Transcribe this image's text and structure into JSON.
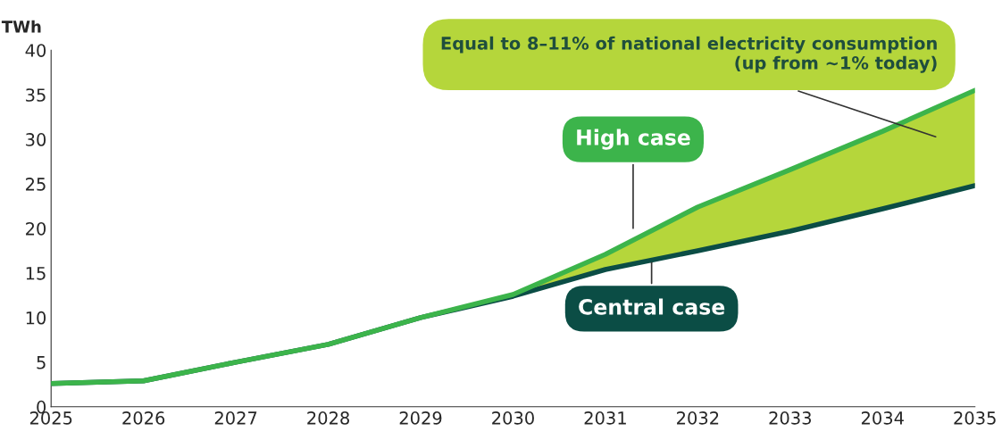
{
  "chart_data": {
    "type": "line",
    "ylabel": "TWh",
    "x": [
      2025,
      2026,
      2027,
      2028,
      2029,
      2030,
      2031,
      2032,
      2033,
      2034,
      2035
    ],
    "xlim": [
      2025,
      2035
    ],
    "xticks": [
      2025,
      2026,
      2027,
      2028,
      2029,
      2030,
      2031,
      2032,
      2033,
      2034,
      2035
    ],
    "ylim": [
      0,
      40
    ],
    "yticks": [
      0,
      5,
      10,
      15,
      20,
      25,
      30,
      35,
      40
    ],
    "grid": false,
    "legend": false,
    "marker": "none",
    "line_style": "solid",
    "series": [
      {
        "name": "Central case",
        "color": "#0b4d45",
        "values": [
          2.6,
          2.9,
          5.0,
          7.0,
          10.0,
          12.4,
          15.4,
          17.5,
          19.7,
          22.2,
          24.8
        ]
      },
      {
        "name": "High case",
        "color": "#3cb44b",
        "values": [
          2.6,
          2.9,
          5.0,
          7.0,
          10.0,
          12.6,
          17.1,
          22.4,
          26.6,
          30.9,
          35.5
        ],
        "lower": [
          null,
          null,
          null,
          null,
          null,
          12.4,
          15.4,
          17.5,
          19.7,
          22.2,
          24.8
        ],
        "upper": [
          null,
          null,
          null,
          null,
          null,
          12.6,
          17.1,
          22.4,
          26.6,
          30.9,
          35.5
        ]
      }
    ],
    "annotations": [
      "Equal to 8–11% of national electricity consumption\n(up from ~1% today)"
    ]
  }
}
